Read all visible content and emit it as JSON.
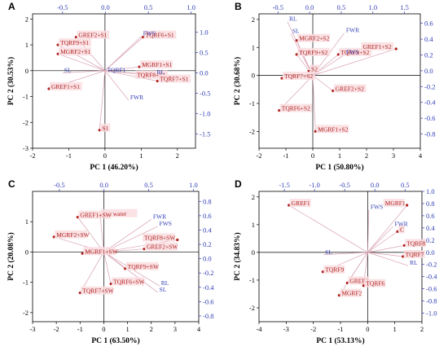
{
  "chart_data": [
    {
      "type": "scatter",
      "panel_label": "A",
      "xlabel": "PC 1 (46.20%)",
      "ylabel": "PC 2 (30.53%)",
      "xlim": [
        -2,
        2.5
      ],
      "ylim": [
        -3,
        2.2
      ],
      "xticks": [
        -2,
        -1,
        0,
        1,
        2
      ],
      "yticks": [
        -3,
        -2,
        -1,
        0,
        1,
        2
      ],
      "top_axis": {
        "lim": [
          -0.85,
          1.05
        ],
        "ticks": [
          -0.5,
          0.0,
          0.5,
          1.0
        ],
        "labels": [
          "-0.5",
          "0.0",
          "0.5",
          "1.0"
        ]
      },
      "right_axis": {
        "lim": [
          -1.85,
          1.45
        ],
        "ticks": [
          1.0,
          0.5,
          0.0,
          -0.5,
          -1.0,
          -1.5
        ],
        "labels": [
          "1.0",
          "0.5",
          "0.0",
          "-0.5",
          "-1.0",
          "-1.5"
        ]
      },
      "scores": [
        {
          "label": "GREF2+S1",
          "x": -0.8,
          "y": 1.3
        },
        {
          "label": "TQRF9+S1",
          "x": -1.3,
          "y": 1.0
        },
        {
          "label": "MGRF2+S1",
          "x": -1.3,
          "y": 0.65
        },
        {
          "label": "GREF1+S1",
          "x": -1.55,
          "y": -0.7
        },
        {
          "label": "S1",
          "x": -0.15,
          "y": -2.3
        },
        {
          "label": "TQRF6+S1",
          "x": 1.05,
          "y": 1.3
        },
        {
          "label": "MGRF1+S1",
          "x": 0.95,
          "y": 0.15
        },
        {
          "label": "TQRF8+S1",
          "x": 1.8,
          "y": -0.25
        },
        {
          "label": "TQRF7+S1",
          "x": 1.45,
          "y": -0.4
        }
      ],
      "loadings": [
        {
          "label": "FWS",
          "x": 0.42,
          "y": 0.9
        },
        {
          "label": "TQRF1",
          "x": 0.0,
          "y": 0.0
        },
        {
          "label": "RL",
          "x": 0.58,
          "y": -0.05
        },
        {
          "label": "FWR",
          "x": 0.27,
          "y": -0.67
        },
        {
          "label": "SL",
          "x": -0.5,
          "y": 0.0
        }
      ]
    },
    {
      "type": "scatter",
      "panel_label": "B",
      "xlabel": "PC 1 (50.80%)",
      "ylabel": "PC 2 (30.68%)",
      "xlim": [
        -2,
        4
      ],
      "ylim": [
        -2.6,
        2.2
      ],
      "xticks": [
        -2,
        -1,
        0,
        1,
        2,
        3,
        4
      ],
      "yticks": [
        -2,
        -1,
        0,
        1,
        2
      ],
      "top_axis": {
        "lim": [
          -0.8,
          1.75
        ],
        "ticks": [
          -0.5,
          0.0,
          0.5,
          1.0,
          1.5
        ],
        "labels": [
          "-0.5",
          "0.0",
          "0.5",
          "1.0",
          "1.5"
        ]
      },
      "right_axis": {
        "lim": [
          -0.98,
          0.72
        ],
        "ticks": [
          0.6,
          0.4,
          0.2,
          0.0,
          -0.2,
          -0.4,
          -0.6,
          -0.8
        ],
        "labels": [
          "0.6",
          "0.4",
          "0.2",
          "0.0",
          "-0.2",
          "-0.4",
          "-0.6",
          "-0.8"
        ]
      },
      "scores": [
        {
          "label": "MGRF2+S2",
          "x": -0.6,
          "y": 1.25
        },
        {
          "label": "TQRF9+S2",
          "x": -0.6,
          "y": 0.75
        },
        {
          "label": "S2",
          "x": -0.15,
          "y": 0.15
        },
        {
          "label": "TQRF7+S2",
          "x": -1.15,
          "y": -0.1
        },
        {
          "label": "TQRF6+S2",
          "x": -1.25,
          "y": -1.25
        },
        {
          "label": "TQRF8+S2",
          "x": 0.95,
          "y": 0.75
        },
        {
          "label": "GREF2+S2",
          "x": 0.75,
          "y": -0.55
        },
        {
          "label": "MGRF1+S2",
          "x": 0.1,
          "y": -2.0
        },
        {
          "label": "GREF1+S2",
          "x": 3.1,
          "y": 0.95
        }
      ],
      "loadings": [
        {
          "label": "RL",
          "x": -0.35,
          "y": 0.62
        },
        {
          "label": "SL",
          "x": -0.3,
          "y": 0.47
        },
        {
          "label": "FWR",
          "x": 0.55,
          "y": 0.48
        },
        {
          "label": "FWS",
          "x": 0.55,
          "y": 0.2
        }
      ]
    },
    {
      "type": "scatter",
      "panel_label": "C",
      "xlabel": "PC 1 (63.50%)",
      "ylabel": "PC 2 (20.08%)",
      "xlim": [
        -3,
        4
      ],
      "ylim": [
        -2.3,
        2.0
      ],
      "xticks": [
        -3,
        -2,
        -1,
        0,
        1,
        2,
        3,
        4
      ],
      "yticks": [
        -2,
        -1,
        0,
        1
      ],
      "top_axis": {
        "lim": [
          -0.8,
          1.06
        ],
        "ticks": [
          -0.5,
          0.0,
          0.5,
          1.0
        ],
        "labels": [
          "-0.5",
          "0.0",
          "0.5",
          "1.0"
        ]
      },
      "right_axis": {
        "lim": [
          -0.88,
          0.94
        ],
        "ticks": [
          0.8,
          0.6,
          0.4,
          0.2,
          0.0,
          -0.2,
          -0.4,
          -0.6,
          -0.8
        ],
        "labels": [
          "0.8",
          "0.6",
          "0.4",
          "0.2",
          "0.0",
          "-0.2",
          "-0.4",
          "-0.6",
          "-0.8"
        ]
      },
      "scores": [
        {
          "label": "Sea water",
          "x": -0.15,
          "y": 1.2
        },
        {
          "label": "GREF1+SW",
          "x": -1.1,
          "y": 1.15
        },
        {
          "label": "MGRF2+SW",
          "x": -2.1,
          "y": 0.5
        },
        {
          "label": "MGRF1+SW",
          "x": -0.9,
          "y": -0.05
        },
        {
          "label": "TQRF7+SW",
          "x": -1.0,
          "y": -1.35
        },
        {
          "label": "TQRF8+SW",
          "x": 3.1,
          "y": 0.4
        },
        {
          "label": "GREF2+SW",
          "x": 1.7,
          "y": 0.1
        },
        {
          "label": "TQRF9+SW",
          "x": 0.9,
          "y": -0.55
        },
        {
          "label": "TQRF6+SW",
          "x": 0.3,
          "y": -1.05
        }
      ],
      "loadings": [
        {
          "label": "FWR",
          "x": 0.53,
          "y": 0.55
        },
        {
          "label": "FWS",
          "x": 0.6,
          "y": 0.45
        },
        {
          "label": "RL",
          "x": 0.62,
          "y": -0.38
        },
        {
          "label": "SL",
          "x": 0.6,
          "y": -0.47
        }
      ]
    },
    {
      "type": "scatter",
      "panel_label": "D",
      "xlabel": "PC 1 (53.13%)",
      "ylabel": "PC 2 (34.83%)",
      "xlim": [
        -4,
        2
      ],
      "ylim": [
        -2.5,
        2.2
      ],
      "xticks": [
        -4,
        -3,
        -2,
        -1,
        0,
        1,
        2
      ],
      "yticks": [
        -2,
        -1,
        0,
        1,
        2
      ],
      "top_axis": {
        "lim": [
          -1.92,
          0.78
        ],
        "ticks": [
          -1.5,
          -1.0,
          -0.5,
          0.0,
          0.5
        ],
        "labels": [
          "-1.5",
          "-1.0",
          "-0.5",
          "0.0",
          "0.5"
        ]
      },
      "right_axis": {
        "lim": [
          -1.14,
          1.0
        ],
        "ticks": [
          1.0,
          0.8,
          0.6,
          0.4,
          0.2,
          0.0,
          -0.2,
          -0.4,
          -0.6,
          -0.8,
          -1.0
        ],
        "labels": [
          "1.0",
          "0.8",
          "0.6",
          "0.4",
          "0.2",
          "0.0",
          "-0.2",
          "-0.4",
          "-0.6",
          "-0.8",
          "-1.0"
        ]
      },
      "scores": [
        {
          "label": "GREF1",
          "x": -2.9,
          "y": 1.7
        },
        {
          "label": "MGRF1",
          "x": 1.45,
          "y": 1.7
        },
        {
          "label": "C",
          "x": 1.1,
          "y": 0.75
        },
        {
          "label": "TQRF8",
          "x": 1.35,
          "y": 0.25
        },
        {
          "label": "TQRF7",
          "x": 1.3,
          "y": -0.15
        },
        {
          "label": "TQRF9",
          "x": -1.65,
          "y": -0.7
        },
        {
          "label": "GREF2",
          "x": -0.75,
          "y": -1.1
        },
        {
          "label": "TQRF6",
          "x": -0.15,
          "y": -1.2
        },
        {
          "label": "MGRF2",
          "x": -1.05,
          "y": -1.55
        }
      ],
      "loadings": [
        {
          "label": "FWS",
          "x": -0.1,
          "y": 0.7
        },
        {
          "label": "FWR",
          "x": 0.3,
          "y": 0.42
        },
        {
          "label": "RL",
          "x": 0.55,
          "y": -0.22
        },
        {
          "label": "SL",
          "x": -0.85,
          "y": -0.04
        }
      ]
    }
  ],
  "colors": {
    "scores": "#b0201d",
    "loadings": "#2f3db5",
    "score_label_bg": "#f9dde0",
    "vector": "#d9a3b3",
    "zero_line": "#000000"
  }
}
